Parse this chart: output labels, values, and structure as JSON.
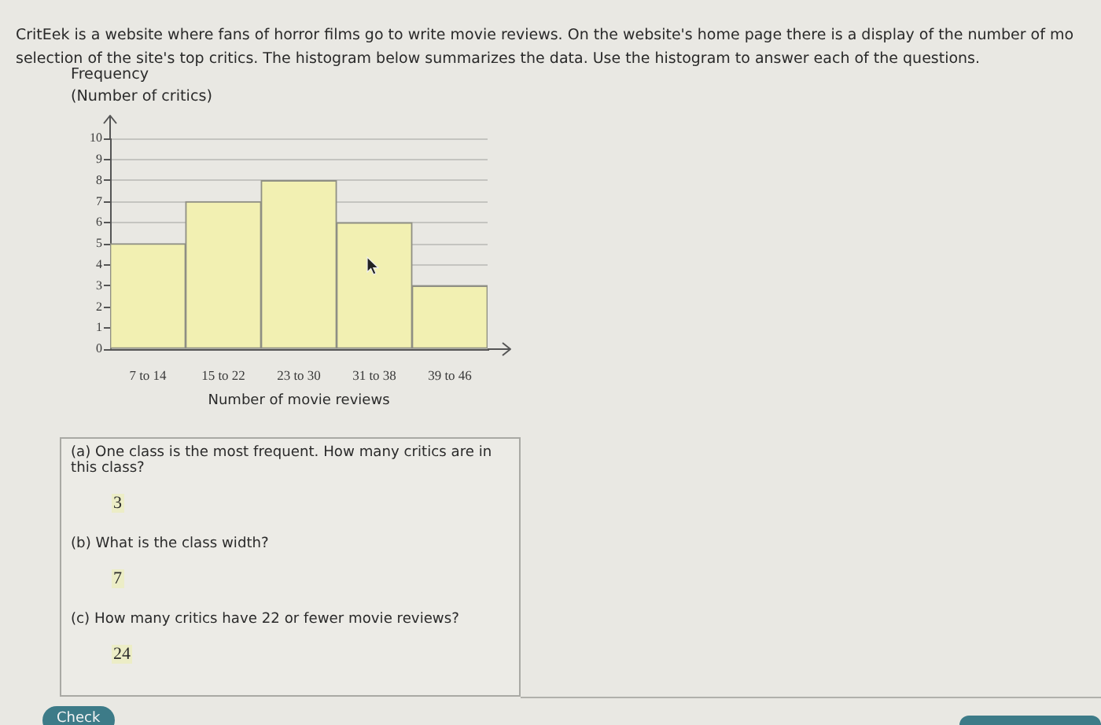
{
  "chart_data": {
    "type": "bar",
    "title": "CritEek is a website where fans of horror films go to write movie reviews. On the website's home page there is a display of the number of mo\nselection of the site's top critics. The histogram below summarizes the data. Use the histogram to answer each of the questions.",
    "ylabel": "Frequency\n(Number of critics)",
    "xlabel": "Number of movie reviews",
    "categories": [
      "7 to 14",
      "15 to 22",
      "23 to 30",
      "31 to 38",
      "39 to 46"
    ],
    "values": [
      5,
      7,
      8,
      6,
      3
    ],
    "color": "#f2f0b2",
    "ylim": [
      0,
      10
    ],
    "yticks": [
      0,
      1,
      2,
      3,
      4,
      5,
      6,
      7,
      8,
      9,
      10
    ],
    "grid": "y",
    "annotations": [
      "(a) One class is the most frequent. How many critics are in this class?",
      "3",
      "(b) What is the class width?",
      "7",
      "(c) How many critics have 22 or fewer movie reviews?",
      "24",
      "Check"
    ]
  }
}
